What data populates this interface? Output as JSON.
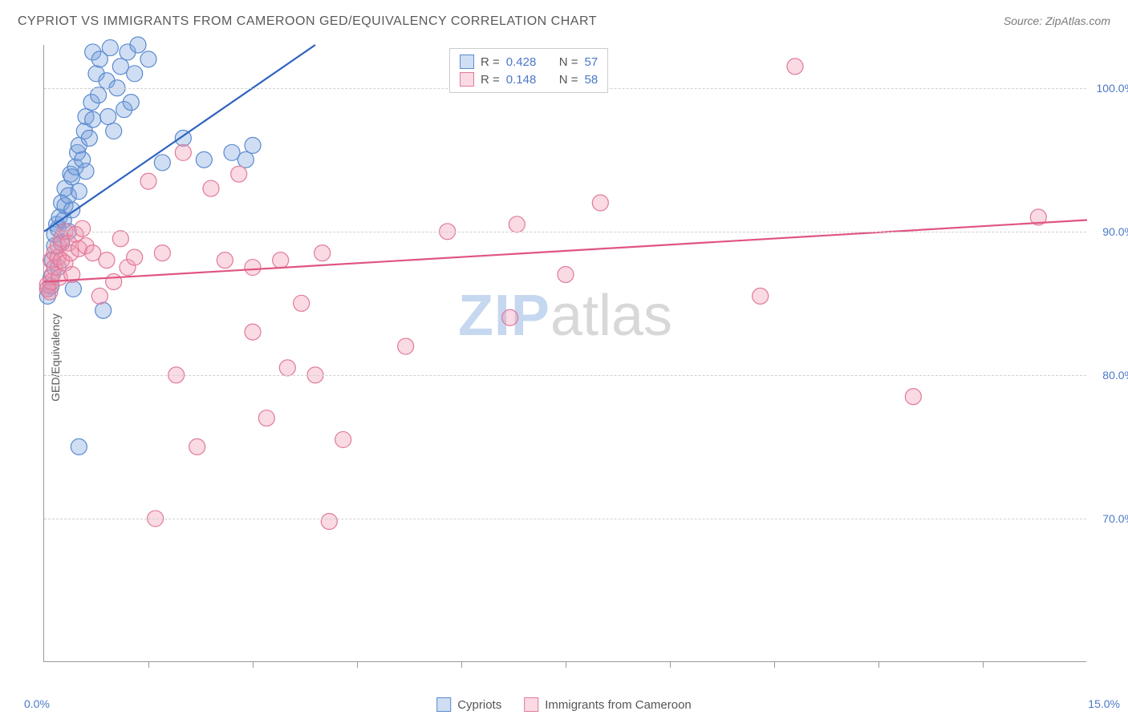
{
  "title": "CYPRIOT VS IMMIGRANTS FROM CAMEROON GED/EQUIVALENCY CORRELATION CHART",
  "source": "Source: ZipAtlas.com",
  "watermark_a": "ZIP",
  "watermark_b": "atlas",
  "chart": {
    "type": "scatter",
    "xlim": [
      0,
      15
    ],
    "ylim": [
      60,
      103
    ],
    "x_axis_label_left": "0.0%",
    "x_axis_label_right": "15.0%",
    "y_axis_title": "GED/Equivalency",
    "y_ticks": [
      {
        "v": 70,
        "label": "70.0%"
      },
      {
        "v": 80,
        "label": "80.0%"
      },
      {
        "v": 90,
        "label": "90.0%"
      },
      {
        "v": 100,
        "label": "100.0%"
      }
    ],
    "x_tick_positions": [
      1.5,
      3.0,
      4.5,
      6.0,
      7.5,
      9.0,
      10.5,
      12.0,
      13.5
    ],
    "grid_color": "#d0d0d0",
    "background_color": "#ffffff",
    "series": [
      {
        "id": "cypriots",
        "label": "Cypriots",
        "color_fill": "rgba(120,160,220,0.35)",
        "color_stroke": "#5a8ad0",
        "line_color": "#2e62c0",
        "marker_radius": 10,
        "r_value": "0.428",
        "n_value": "57",
        "trend": {
          "x1": 0,
          "y1": 90,
          "x2": 3.9,
          "y2": 103
        },
        "points": [
          [
            0.05,
            85.5
          ],
          [
            0.05,
            86.0
          ],
          [
            0.1,
            86.2
          ],
          [
            0.1,
            86.8
          ],
          [
            0.12,
            88.0
          ],
          [
            0.15,
            89.0
          ],
          [
            0.15,
            89.8
          ],
          [
            0.18,
            90.5
          ],
          [
            0.2,
            87.5
          ],
          [
            0.2,
            90.2
          ],
          [
            0.22,
            91.0
          ],
          [
            0.25,
            89.2
          ],
          [
            0.25,
            92.0
          ],
          [
            0.28,
            90.8
          ],
          [
            0.3,
            91.8
          ],
          [
            0.3,
            93.0
          ],
          [
            0.35,
            90.0
          ],
          [
            0.35,
            92.5
          ],
          [
            0.38,
            94.0
          ],
          [
            0.4,
            91.5
          ],
          [
            0.4,
            93.8
          ],
          [
            0.42,
            86.0
          ],
          [
            0.45,
            94.5
          ],
          [
            0.48,
            95.5
          ],
          [
            0.5,
            92.8
          ],
          [
            0.5,
            96.0
          ],
          [
            0.55,
            95.0
          ],
          [
            0.58,
            97.0
          ],
          [
            0.6,
            94.2
          ],
          [
            0.6,
            98.0
          ],
          [
            0.65,
            96.5
          ],
          [
            0.68,
            99.0
          ],
          [
            0.7,
            97.8
          ],
          [
            0.7,
            102.5
          ],
          [
            0.75,
            101.0
          ],
          [
            0.78,
            99.5
          ],
          [
            0.8,
            102.0
          ],
          [
            0.85,
            84.5
          ],
          [
            0.9,
            100.5
          ],
          [
            0.92,
            98.0
          ],
          [
            0.95,
            102.8
          ],
          [
            1.0,
            97.0
          ],
          [
            1.05,
            100.0
          ],
          [
            1.1,
            101.5
          ],
          [
            1.15,
            98.5
          ],
          [
            1.2,
            102.5
          ],
          [
            1.25,
            99.0
          ],
          [
            1.3,
            101.0
          ],
          [
            1.35,
            103.0
          ],
          [
            1.5,
            102.0
          ],
          [
            1.7,
            94.8
          ],
          [
            2.0,
            96.5
          ],
          [
            2.3,
            95.0
          ],
          [
            2.7,
            95.5
          ],
          [
            2.9,
            95.0
          ],
          [
            3.0,
            96.0
          ],
          [
            0.5,
            75.0
          ]
        ]
      },
      {
        "id": "cameroon",
        "label": "Immigrants from Cameroon",
        "color_fill": "rgba(240,150,175,0.35)",
        "color_stroke": "#e07a9a",
        "line_color": "#e05580",
        "marker_radius": 10,
        "r_value": "0.148",
        "n_value": "58",
        "trend": {
          "x1": 0,
          "y1": 86.5,
          "x2": 15,
          "y2": 90.8
        },
        "points": [
          [
            0.05,
            86.0
          ],
          [
            0.05,
            86.3
          ],
          [
            0.08,
            85.8
          ],
          [
            0.1,
            86.5
          ],
          [
            0.1,
            88.0
          ],
          [
            0.12,
            87.0
          ],
          [
            0.15,
            88.5
          ],
          [
            0.15,
            87.5
          ],
          [
            0.2,
            88.2
          ],
          [
            0.2,
            89.0
          ],
          [
            0.22,
            86.8
          ],
          [
            0.25,
            88.0
          ],
          [
            0.25,
            89.5
          ],
          [
            0.3,
            87.8
          ],
          [
            0.3,
            90.0
          ],
          [
            0.35,
            89.2
          ],
          [
            0.38,
            88.5
          ],
          [
            0.4,
            87.0
          ],
          [
            0.45,
            89.8
          ],
          [
            0.5,
            88.8
          ],
          [
            0.55,
            90.2
          ],
          [
            0.6,
            89.0
          ],
          [
            0.7,
            88.5
          ],
          [
            0.8,
            85.5
          ],
          [
            0.9,
            88.0
          ],
          [
            1.0,
            86.5
          ],
          [
            1.1,
            89.5
          ],
          [
            1.2,
            87.5
          ],
          [
            1.3,
            88.2
          ],
          [
            1.5,
            93.5
          ],
          [
            1.6,
            70.0
          ],
          [
            1.7,
            88.5
          ],
          [
            1.9,
            80.0
          ],
          [
            2.0,
            95.5
          ],
          [
            2.2,
            75.0
          ],
          [
            2.4,
            93.0
          ],
          [
            2.6,
            88.0
          ],
          [
            2.8,
            94.0
          ],
          [
            3.0,
            87.5
          ],
          [
            3.2,
            77.0
          ],
          [
            3.4,
            88.0
          ],
          [
            3.5,
            80.5
          ],
          [
            3.7,
            85.0
          ],
          [
            3.9,
            80.0
          ],
          [
            4.0,
            88.5
          ],
          [
            4.1,
            69.8
          ],
          [
            4.3,
            75.5
          ],
          [
            5.2,
            82.0
          ],
          [
            5.8,
            90.0
          ],
          [
            6.7,
            84.0
          ],
          [
            6.8,
            90.5
          ],
          [
            7.5,
            87.0
          ],
          [
            8.0,
            92.0
          ],
          [
            10.3,
            85.5
          ],
          [
            10.8,
            101.5
          ],
          [
            12.5,
            78.5
          ],
          [
            14.3,
            91.0
          ],
          [
            3.0,
            83.0
          ]
        ]
      }
    ]
  },
  "legend_top": {
    "r_prefix": "R =",
    "n_prefix": "N ="
  }
}
